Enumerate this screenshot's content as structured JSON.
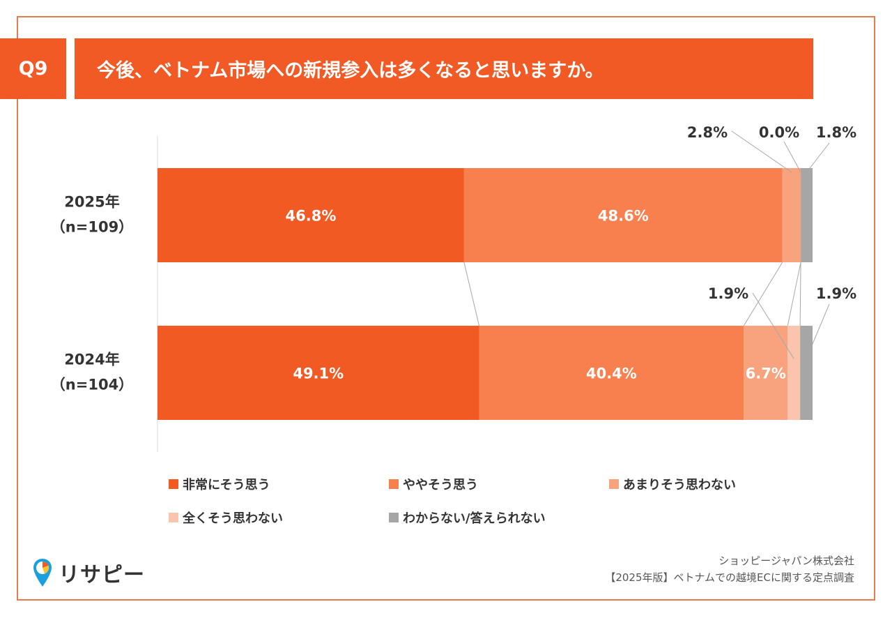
{
  "question": {
    "badge": "Q9",
    "title": "今後、ベトナム市場への新規参入は多くなると思いますか。"
  },
  "colors": {
    "brand_orange": "#f15a24",
    "frame_border": "#e87a4e"
  },
  "chart_data": {
    "type": "bar",
    "orientation": "horizontal-stacked-100",
    "categories": [
      "非常にそう思う",
      "ややそう思う",
      "あまりそう思わない",
      "全くそう思わない",
      "わからない/答えられない"
    ],
    "category_colors": [
      "#f15a22",
      "#f7804e",
      "#f9a37e",
      "#fbc5ad",
      "#a6a6a6"
    ],
    "rows": [
      {
        "year": "2025年",
        "n": "（n=109）",
        "values": [
          46.8,
          48.6,
          2.8,
          0.0,
          1.8
        ],
        "labels": [
          "46.8%",
          "48.6%",
          "2.8%",
          "0.0%",
          "1.8%"
        ]
      },
      {
        "year": "2024年",
        "n": "（n=104）",
        "values": [
          49.1,
          40.4,
          6.7,
          1.9,
          1.9
        ],
        "labels": [
          "49.1%",
          "40.4%",
          "6.7%",
          "1.9%",
          "1.9%"
        ]
      }
    ],
    "xlim": [
      0,
      100
    ],
    "legend_position": "bottom",
    "grid": false
  },
  "legend": [
    {
      "label": "非常にそう思う",
      "color": "#f15a22"
    },
    {
      "label": "ややそう思う",
      "color": "#f7804e"
    },
    {
      "label": "あまりそう思わない",
      "color": "#f9a37e"
    },
    {
      "label": "全くそう思わない",
      "color": "#fbc5ad"
    },
    {
      "label": "わからない/答えられない",
      "color": "#a6a6a6"
    }
  ],
  "brand": {
    "name": "リサピー"
  },
  "source": {
    "line1": "ショッピージャパン株式会社",
    "line2": "【2025年版】ベトナムでの越境ECに関する定点調査"
  }
}
